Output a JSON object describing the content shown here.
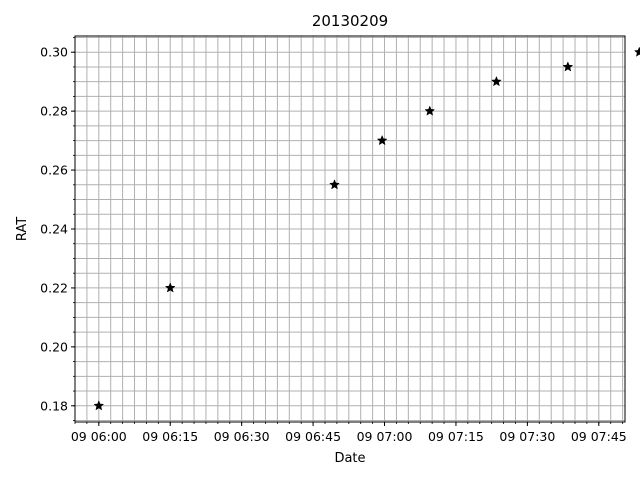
{
  "chart_data": {
    "type": "scatter",
    "title": "20130209",
    "xlabel": "Date",
    "ylabel": "RAT",
    "x_tick_labels": [
      "09 06:00",
      "09 06:15",
      "09 06:30",
      "09 06:45",
      "09 07:00",
      "09 07:15",
      "09 07:30",
      "09 07:45"
    ],
    "x_tick_minutes": [
      360,
      375,
      390,
      405,
      420,
      435,
      450,
      465
    ],
    "xlim_minutes": [
      355,
      470.5
    ],
    "ylim": [
      0.1745,
      0.3055
    ],
    "y_ticks": [
      0.18,
      0.2,
      0.22,
      0.24,
      0.26,
      0.28,
      0.3
    ],
    "y_tick_labels": [
      "0.18",
      "0.20",
      "0.22",
      "0.24",
      "0.26",
      "0.28",
      "0.30"
    ],
    "grid": true,
    "marker": "star",
    "marker_color": "#000000",
    "points": [
      {
        "time": "06:00",
        "minutes": 360.0,
        "value": 0.18
      },
      {
        "time": "06:15",
        "minutes": 375.0,
        "value": 0.22
      },
      {
        "time": "06:50",
        "minutes": 409.5,
        "value": 0.255
      },
      {
        "time": "07:00",
        "minutes": 419.5,
        "value": 0.27
      },
      {
        "time": "07:10",
        "minutes": 429.5,
        "value": 0.28
      },
      {
        "time": "07:24",
        "minutes": 443.5,
        "value": 0.29
      },
      {
        "time": "07:39",
        "minutes": 458.5,
        "value": 0.295
      },
      {
        "time": "07:54",
        "minutes": 473.5,
        "value": 0.3
      }
    ]
  }
}
